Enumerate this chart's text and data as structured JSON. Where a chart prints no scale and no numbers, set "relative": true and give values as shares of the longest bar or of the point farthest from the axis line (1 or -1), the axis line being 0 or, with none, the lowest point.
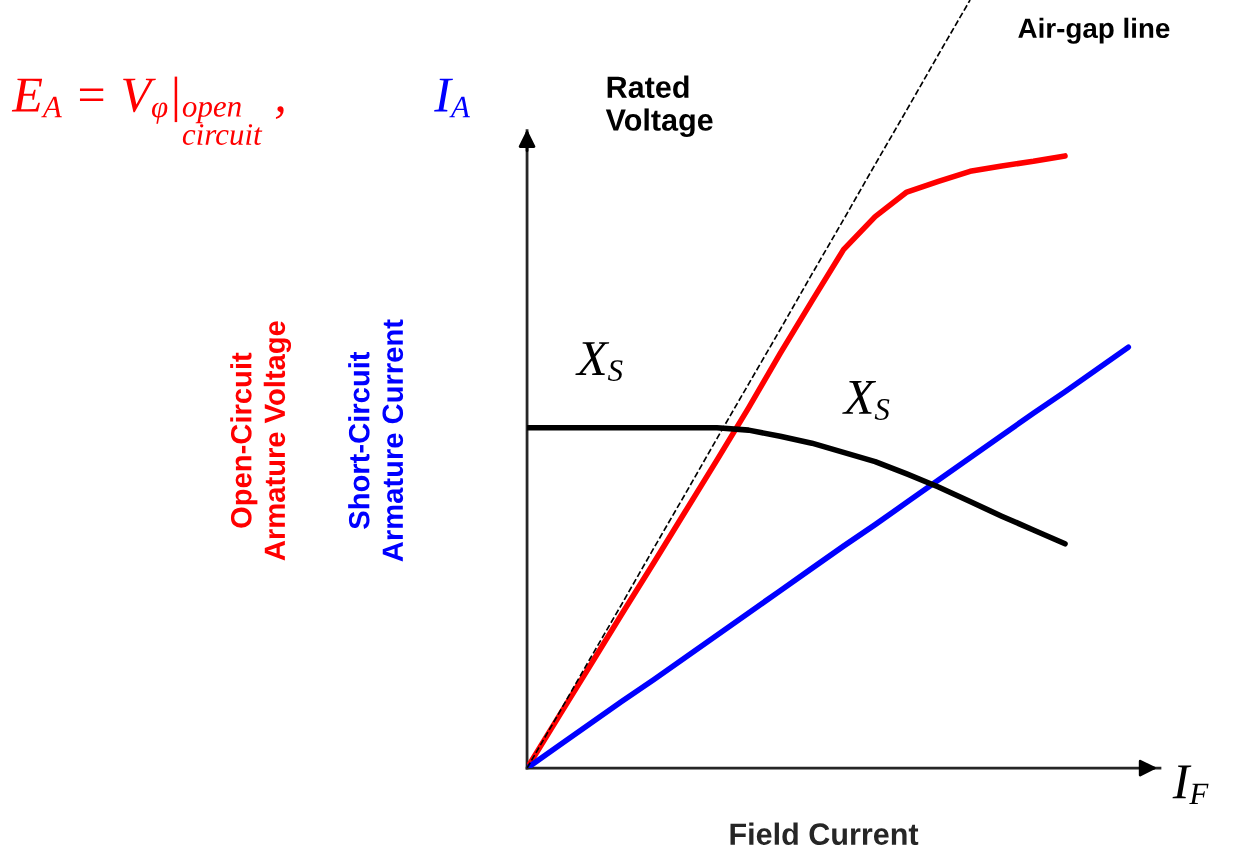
{
  "chart_data": {
    "type": "line",
    "relative": true,
    "xlabel": "Field Current",
    "ylabel": "E$_{A}$ = V$_{φ}$|$_{open circuit}$ ,",
    "legend": false,
    "categories": [
      null,
      null,
      null,
      null,
      null,
      null,
      null,
      null,
      null,
      null,
      null,
      null,
      null,
      null,
      null,
      null,
      null,
      null,
      null,
      null,
      null
    ],
    "annotations": [
      "I$_{A}$",
      "Rated\nVoltage",
      "I$_{F}$",
      "X$_{S}$",
      "X$_{S}$"
    ],
    "series": [
      {
        "name": "Open-Circuit\nArmature Voltage",
        "color": "#ff0000",
        "values": [
          0,
          0.067,
          0.134,
          0.201,
          0.267,
          0.334,
          0.401,
          0.469,
          0.54,
          0.608,
          0.675,
          0.718,
          0.75,
          0.764,
          0.777,
          0.784,
          0.79,
          0.797,
          null,
          null,
          null
        ]
      },
      {
        "name": "Short-Circuit\nArmature Current",
        "color": "#0000ff",
        "values": [
          0,
          0.029,
          0.058,
          0.087,
          0.115,
          0.144,
          0.173,
          0.202,
          0.231,
          0.26,
          0.289,
          0.317,
          0.346,
          0.375,
          0.404,
          0.433,
          0.462,
          0.49,
          0.519,
          0.548,
          null
        ]
      },
      {
        "color": "#000000",
        "values": [
          0.443,
          0.443,
          0.443,
          0.443,
          0.443,
          0.443,
          0.443,
          0.44,
          0.432,
          0.423,
          0.411,
          0.399,
          0.383,
          0.366,
          0.347,
          0.328,
          0.31,
          0.292,
          null,
          null,
          null
        ]
      },
      {
        "name": "Air-gap line",
        "color": "#000000",
        "line_style": "dashed",
        "values": [
          0,
          0.071,
          0.143,
          0.214,
          0.286,
          0.357,
          0.429,
          0.5,
          0.571,
          0.643,
          0.714,
          0.786,
          0.857,
          0.929,
          1,
          null,
          null,
          null,
          null,
          null,
          null
        ]
      }
    ]
  }
}
